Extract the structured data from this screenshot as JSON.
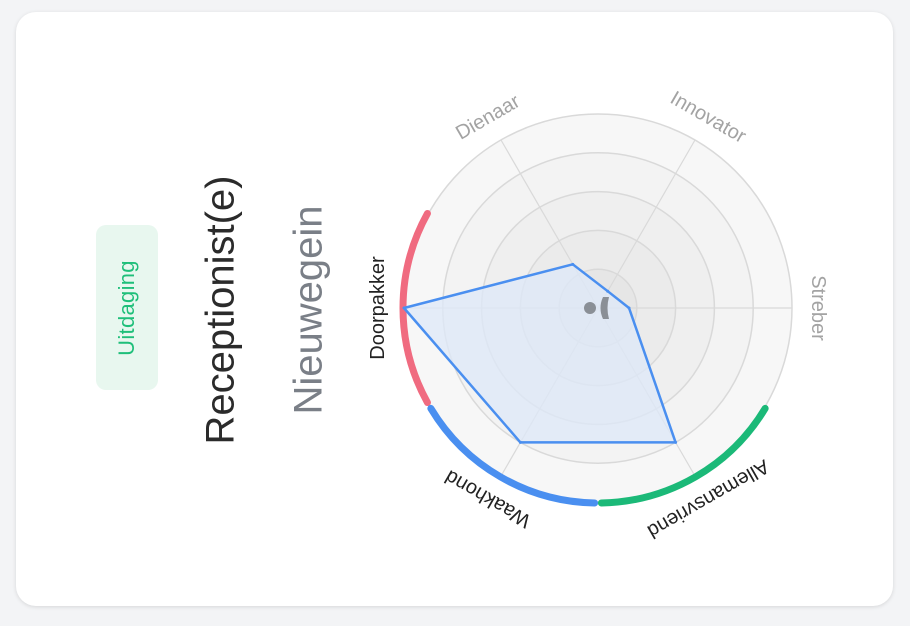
{
  "badge": {
    "label": "Uitdaging"
  },
  "job": {
    "title": "Receptionist(e)",
    "location": "Nieuwegein"
  },
  "colors": {
    "badge_text": "#1fbf7a",
    "polygon_stroke": "#4a8ff0",
    "polygon_fill": "#dde8f8",
    "arc_green": "#1bb978",
    "arc_blue": "#4a8ff0",
    "arc_red": "#f06b80",
    "grid": "#d9d9d9"
  },
  "icons": {
    "center": "person-icon"
  },
  "chart_data": {
    "type": "radar",
    "axes": [
      "Streber",
      "Innovator",
      "Dienaar",
      "Doorpakker",
      "Waakhond",
      "Allemansvriend"
    ],
    "values": [
      16,
      10,
      26,
      100,
      80,
      80
    ],
    "rmax": 100,
    "rings": 5,
    "highlighted_axes": [
      "Doorpakker",
      "Waakhond",
      "Allemansvriend"
    ],
    "grid": true
  }
}
